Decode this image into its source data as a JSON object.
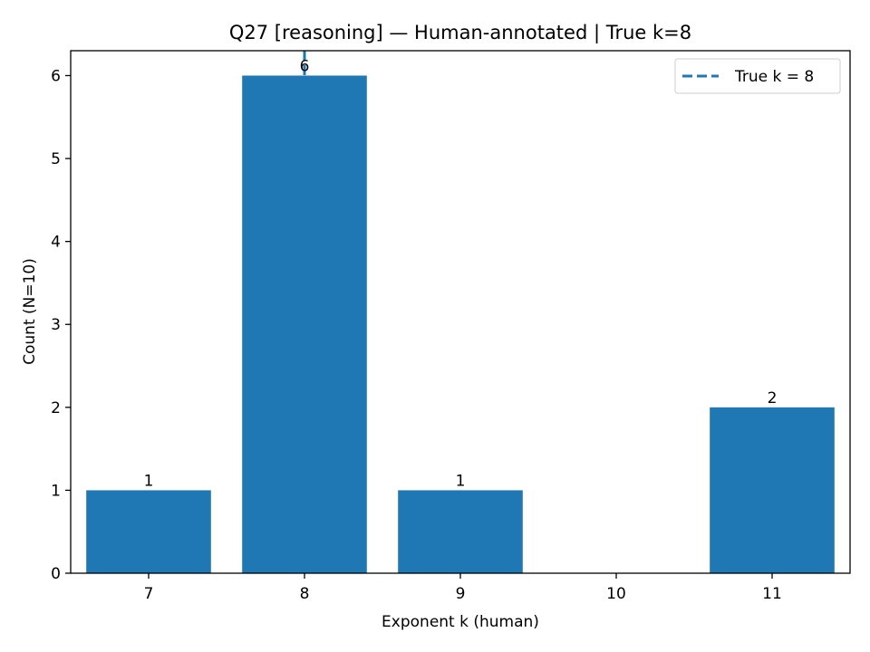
{
  "chart_data": {
    "type": "bar",
    "title": "Q27 [reasoning] — Human-annotated | True k=8",
    "xlabel": "Exponent k (human)",
    "ylabel": "Count (N=10)",
    "categories": [
      "7",
      "8",
      "9",
      "10",
      "11"
    ],
    "x": [
      7,
      8,
      9,
      10,
      11
    ],
    "values": [
      1,
      6,
      1,
      0,
      2
    ],
    "bar_labels": [
      "1",
      "6",
      "1",
      "",
      "2"
    ],
    "xlim": [
      6.5,
      11.5
    ],
    "ylim": [
      0,
      6.3
    ],
    "yticks": [
      0,
      1,
      2,
      3,
      4,
      5,
      6
    ],
    "grid": false,
    "bar_color": "#1f77b4",
    "reference_line": {
      "x": 8,
      "label": "True k = 8",
      "color": "#1f77b4",
      "style": "dashed"
    },
    "legend": {
      "placement": "top-right",
      "entries": [
        "True k = 8"
      ]
    }
  }
}
